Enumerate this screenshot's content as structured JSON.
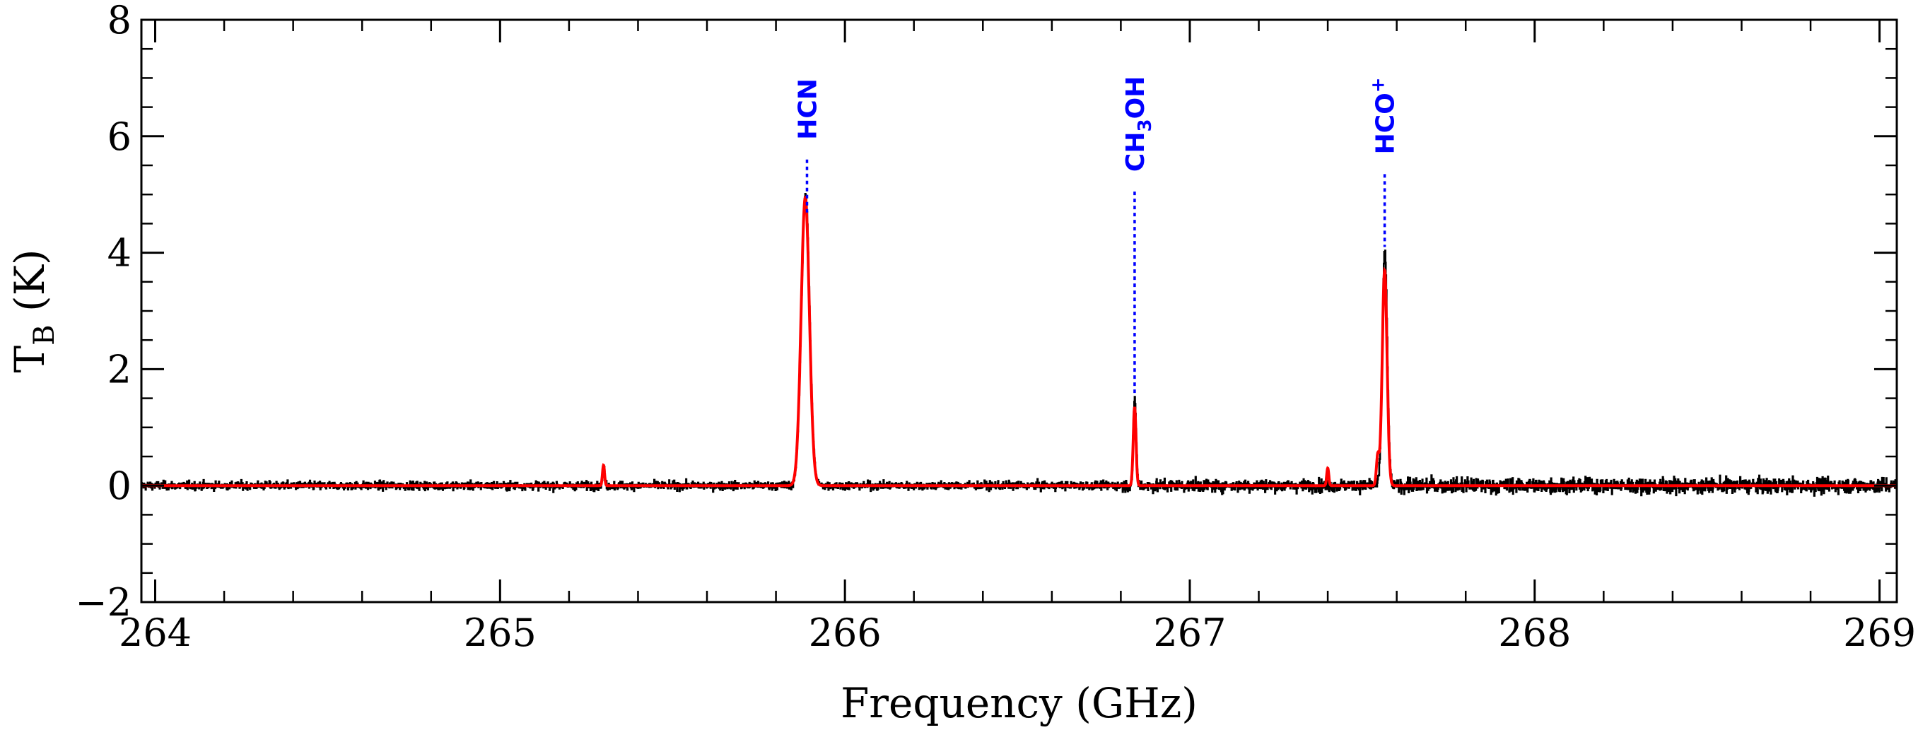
{
  "chart_data": {
    "type": "line",
    "xlabel": "Frequency (GHz)",
    "ylabel_main": "T",
    "ylabel_sub": "B",
    "ylabel_unit": " (K)",
    "xlim": [
      263.96,
      269.05
    ],
    "ylim": [
      -2,
      8
    ],
    "x_ticks": [
      264,
      265,
      266,
      267,
      268,
      269
    ],
    "x_tick_labels": [
      "264",
      "265",
      "266",
      "267",
      "268",
      "269"
    ],
    "y_ticks": [
      -2,
      0,
      2,
      4,
      6,
      8
    ],
    "y_tick_labels": [
      "−2",
      "0",
      "2",
      "4",
      "6",
      "8"
    ],
    "x_minor_step": 0.2,
    "y_minor_step": 0.5,
    "grid": false,
    "series": [
      {
        "color": "#000000",
        "noise_rms_by_range": [
          {
            "from": 263.96,
            "to": 266.8,
            "rms": 0.06
          },
          {
            "from": 266.8,
            "to": 267.6,
            "rms": 0.09
          },
          {
            "from": 267.6,
            "to": 269.05,
            "rms": 0.11
          }
        ],
        "peaks": [
          {
            "x": 265.885,
            "peak": 5.02,
            "width": 0.012
          },
          {
            "x": 266.84,
            "peak": 1.5,
            "width": 0.004
          },
          {
            "x": 267.565,
            "peak": 4.05,
            "width": 0.007
          },
          {
            "x": 265.3,
            "peak": 0.3,
            "width": 0.003
          }
        ]
      },
      {
        "color": "#ff0000",
        "peaks": [
          {
            "x": 265.885,
            "peak": 4.95,
            "width": 0.012
          },
          {
            "x": 266.84,
            "peak": 1.35,
            "width": 0.004
          },
          {
            "x": 267.565,
            "peak": 3.7,
            "width": 0.007
          },
          {
            "x": 267.545,
            "peak": 0.5,
            "width": 0.004
          },
          {
            "x": 265.3,
            "peak": 0.35,
            "width": 0.003
          },
          {
            "x": 267.4,
            "peak": 0.3,
            "width": 0.003
          }
        ]
      }
    ],
    "annotations": [
      {
        "text": "HCN",
        "x": 265.89,
        "line_top": 5.6
      },
      {
        "text": "CH",
        "sub": "3",
        "suffix": "OH",
        "x": 266.84,
        "line_top": 5.05
      },
      {
        "text": "HCO",
        "sup": "+",
        "x": 267.565,
        "line_top": 5.35
      }
    ],
    "colors": {
      "data": "#000000",
      "model": "#ff0000",
      "label": "#0000ff"
    }
  }
}
